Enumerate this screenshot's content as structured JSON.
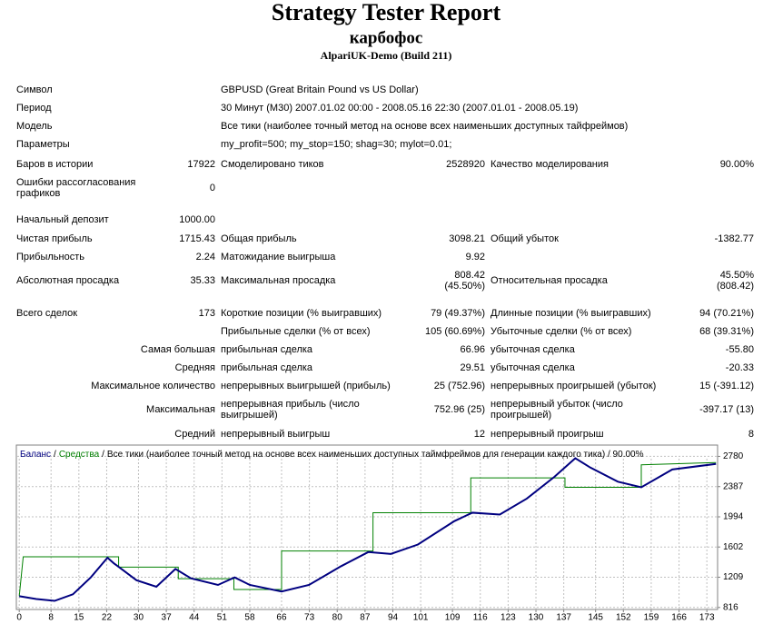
{
  "header": {
    "title": "Strategy Tester Report",
    "subtitle": "карбофос",
    "server": "AlpariUK-Demo (Build 211)"
  },
  "table": {
    "rows": [
      [
        "Символ",
        "GBPUSD (Great Britain Pound vs US Dollar)"
      ],
      [
        "Период",
        "30 Минут (M30) 2007.01.02 00:00 - 2008.05.16 22:30 (2007.01.01 - 2008.05.19)"
      ],
      [
        "Модель",
        "Все тики (наиболее точный метод на основе всех наименьших доступных тайфреймов)"
      ],
      [
        "Параметры",
        "my_profit=500; my_stop=150; shag=30; mylot=0.01;"
      ],
      [
        "Баров в истории",
        "17922",
        "Смоделировано тиков",
        "2528920",
        "Качество моделирования",
        "90.00%"
      ],
      [
        [
          "Ошибки рассогласования",
          "графиков"
        ],
        "0",
        null,
        null,
        null,
        null
      ],
      [
        "Начальный депозит",
        "1000.00",
        null,
        null,
        null,
        null
      ],
      [
        "Чистая прибыль",
        "1715.43",
        "Общая прибыль",
        "3098.21",
        "Общий убыток",
        "-1382.77"
      ],
      [
        "Прибыльность",
        "2.24",
        "Матожидание выигрыша",
        "9.92",
        null,
        null
      ],
      [
        "Абсолютная просадка",
        "35.33",
        "Максимальная просадка",
        [
          "808.42",
          "(45.50%)"
        ],
        "Относительная просадка",
        [
          "45.50%",
          "(808.42)"
        ]
      ],
      [
        "Всего сделок",
        "173",
        "Короткие позиции (% выигравших)",
        "79 (49.37%)",
        "Длинные позиции (% выигравших)",
        "94 (70.21%)"
      ],
      [
        null,
        null,
        "Прибыльные сделки (% от всех)",
        "105 (60.69%)",
        "Убыточные сделки (% от всех)",
        "68 (39.31%)"
      ],
      [
        null,
        "Самая большая",
        "прибыльная сделка",
        "66.96",
        "убыточная сделка",
        "-55.80"
      ],
      [
        null,
        "Средняя",
        "прибыльная сделка",
        "29.51",
        "убыточная сделка",
        "-20.33"
      ],
      [
        null,
        "Максимальное количество",
        "непрерывных выигрышей (прибыль)",
        "25 (752.96)",
        "непрерывных проигрышей (убыток)",
        "15 (-391.12)"
      ],
      [
        null,
        "Максимальная",
        [
          "непрерывная прибыль (число",
          "выигрышей)"
        ],
        "752.96 (25)",
        [
          "непрерывный убыток (число",
          "проигрышей)"
        ],
        "-397.17 (13)"
      ],
      [
        null,
        "Средний",
        "непрерывный выигрыш",
        "12",
        "непрерывный проигрыш",
        "8"
      ]
    ]
  },
  "chart_data": {
    "type": "line",
    "legend_separator": "/",
    "subtitle": "Все тики (наиболее точный метод на основе всех наименьших доступных таймфреймов для генерации каждого тика) / 90.00%",
    "xlim": [
      -0.5,
      175.7
    ],
    "ylim": [
      790,
      2915
    ],
    "xticks": [
      0,
      8,
      15,
      22,
      30,
      37,
      44,
      51,
      58,
      66,
      73,
      80,
      87,
      94,
      101,
      109,
      116,
      123,
      130,
      137,
      145,
      152,
      159,
      166,
      173
    ],
    "yticks": [
      816,
      1209,
      1602,
      1994,
      2387,
      2780
    ],
    "grid": true,
    "series": [
      {
        "name": "Баланс",
        "color": "#000080",
        "x": [
          0,
          4.3,
          8.9,
          13.5,
          18,
          22.2,
          23.8,
          29.5,
          34.5,
          39.3,
          43.2,
          50,
          54.2,
          58,
          66,
          72.9,
          81,
          87.8,
          93.5,
          100.3,
          109.5,
          114,
          120.9,
          127.7,
          134.6,
          139.9,
          143.7,
          150.6,
          156.5,
          164.3,
          175.3
        ],
        "values": [
          963,
          926,
          902,
          987,
          1207,
          1463,
          1390,
          1170,
          1085,
          1317,
          1195,
          1109,
          1207,
          1109,
          1024,
          1109,
          1353,
          1536,
          1512,
          1634,
          1939,
          2048,
          2024,
          2231,
          2512,
          2756,
          2634,
          2451,
          2378,
          2610,
          2682
        ]
      },
      {
        "name": "Средства",
        "color": "#008000",
        "x": [
          0,
          1,
          25,
          25,
          40,
          40,
          54,
          54,
          66,
          66,
          89,
          89,
          113.6,
          113.6,
          137.3,
          137.3,
          156.5,
          156.5,
          175.3
        ],
        "values": [
          963,
          1475,
          1475,
          1340,
          1340,
          1190,
          1190,
          1050,
          1050,
          1550,
          1550,
          2048,
          2048,
          2500,
          2500,
          2378,
          2378,
          2670,
          2700
        ]
      }
    ]
  }
}
